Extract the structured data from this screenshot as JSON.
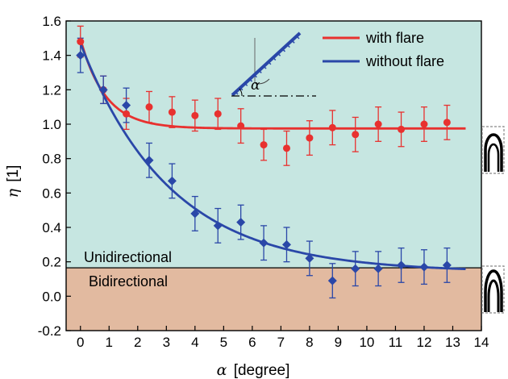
{
  "chart_data": {
    "type": "scatter",
    "title": "",
    "xlabel": {
      "symbol": "α",
      "unit": "[degree]"
    },
    "ylabel": {
      "symbol": "η",
      "unit": "[1]"
    },
    "xlim": [
      -0.5,
      14
    ],
    "ylim": [
      -0.2,
      1.6
    ],
    "xticks": [
      "0",
      "1",
      "2",
      "3",
      "4",
      "5",
      "6",
      "7",
      "8",
      "9",
      "10",
      "11",
      "12",
      "13",
      "14"
    ],
    "yticks": [
      "-0.2",
      "0.0",
      "0.2",
      "0.4",
      "0.6",
      "0.8",
      "1.0",
      "1.2",
      "1.4",
      "1.6"
    ],
    "threshold": 0.165,
    "regions": {
      "upper": "Unidirectional",
      "lower": "Bidirectional"
    },
    "colors": {
      "upper_bg": "#c6e6e1",
      "lower_bg": "#e2baa0",
      "with_flare": "#e8312f",
      "without_flare": "#2a47a8"
    },
    "legend": [
      "with flare",
      "without flare"
    ],
    "inset_label": "α",
    "series": [
      {
        "name": "with flare",
        "marker": "circle",
        "x": [
          0,
          0.8,
          1.6,
          2.4,
          3.2,
          4.0,
          4.8,
          5.6,
          6.4,
          7.2,
          8.0,
          8.8,
          9.6,
          10.4,
          11.2,
          12.0,
          12.8
        ],
        "y": [
          1.48,
          1.2,
          1.06,
          1.1,
          1.07,
          1.05,
          1.06,
          0.99,
          0.88,
          0.86,
          0.92,
          0.98,
          0.94,
          1.0,
          0.97,
          1.0,
          1.01
        ],
        "err": [
          0.09,
          0.08,
          0.09,
          0.09,
          0.09,
          0.09,
          0.09,
          0.1,
          0.09,
          0.1,
          0.1,
          0.1,
          0.1,
          0.1,
          0.1,
          0.1,
          0.1
        ],
        "fit": {
          "a": 0.975,
          "b": 0.52,
          "k": 1.15
        }
      },
      {
        "name": "without flare",
        "marker": "diamond",
        "x": [
          0,
          0.8,
          1.6,
          2.4,
          3.2,
          4.0,
          4.8,
          5.6,
          6.4,
          7.2,
          8.0,
          8.8,
          9.6,
          10.4,
          11.2,
          12.0,
          12.8
        ],
        "y": [
          1.4,
          1.2,
          1.11,
          0.79,
          0.67,
          0.48,
          0.41,
          0.43,
          0.31,
          0.3,
          0.22,
          0.09,
          0.16,
          0.16,
          0.18,
          0.17,
          0.18
        ],
        "err": [
          0.1,
          0.08,
          0.1,
          0.1,
          0.1,
          0.1,
          0.1,
          0.1,
          0.1,
          0.1,
          0.1,
          0.1,
          0.1,
          0.1,
          0.1,
          0.1,
          0.1
        ],
        "fit": {
          "a": 0.14,
          "b": 1.33,
          "k": 0.32
        }
      }
    ]
  }
}
